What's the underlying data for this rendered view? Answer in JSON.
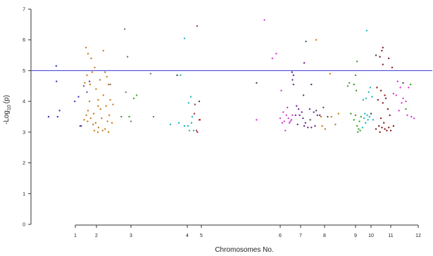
{
  "chart_data": {
    "type": "scatter",
    "xlabel": "Chromosomes No.",
    "ylabel_prefix": "-Log",
    "ylabel_sub": "10",
    "ylabel_suffix": "(p)",
    "ylim": [
      0,
      7
    ],
    "y_ticks": [
      "0",
      "1",
      "2",
      "3",
      "4",
      "5",
      "6",
      "7"
    ],
    "x_ticks": [
      {
        "label": "1",
        "x": 1
      },
      {
        "label": "2",
        "x": 2
      },
      {
        "label": "3",
        "x": 3
      },
      {
        "label": "4",
        "x": 4
      },
      {
        "label": "5",
        "x": 5
      },
      {
        "label": "6",
        "x": 6
      },
      {
        "label": "7",
        "x": 7
      },
      {
        "label": "8",
        "x": 8
      },
      {
        "label": "9",
        "x": 9
      },
      {
        "label": "10",
        "x": 10
      },
      {
        "label": "11",
        "x": 11
      },
      {
        "label": "12",
        "x": 12
      }
    ],
    "threshold": 5,
    "threshold_color": "#4b4bdc",
    "grid": false,
    "series": [
      {
        "color": "#3b3bb5",
        "points": [
          [
            0.05,
            3.5
          ],
          [
            0.33,
            4.65
          ],
          [
            0.37,
            3.5
          ],
          [
            0.32,
            5.15
          ],
          [
            0.44,
            3.7
          ],
          [
            0.98,
            4.0
          ],
          [
            1.15,
            4.15
          ],
          [
            1.23,
            3.2
          ]
        ]
      },
      {
        "color": "#c97a1e",
        "points": [
          [
            1.5,
            5.75
          ],
          [
            1.6,
            5.55
          ],
          [
            1.75,
            5.4
          ],
          [
            1.92,
            5.1
          ],
          [
            2.2,
            5.65
          ],
          [
            1.55,
            4.85
          ],
          [
            1.8,
            4.95
          ],
          [
            2.1,
            4.7
          ],
          [
            2.25,
            4.95
          ],
          [
            2.3,
            4.8
          ],
          [
            2.35,
            4.55
          ],
          [
            1.7,
            4.55
          ],
          [
            1.98,
            4.4
          ],
          [
            2.2,
            4.2
          ],
          [
            2.4,
            4.05
          ],
          [
            1.45,
            4.6
          ],
          [
            1.67,
            4.0
          ],
          [
            2.05,
            4.05
          ],
          [
            2.28,
            3.85
          ],
          [
            2.48,
            3.9
          ],
          [
            1.52,
            3.55
          ],
          [
            1.73,
            3.45
          ],
          [
            1.96,
            3.3
          ],
          [
            2.15,
            3.45
          ],
          [
            2.32,
            3.35
          ],
          [
            1.58,
            3.35
          ],
          [
            1.84,
            3.25
          ],
          [
            2.06,
            3.15
          ],
          [
            2.25,
            3.1
          ],
          [
            2.45,
            3.3
          ],
          [
            1.9,
            3.05
          ],
          [
            2.04,
            3.0
          ],
          [
            2.18,
            3.05
          ],
          [
            2.35,
            3.0
          ],
          [
            1.42,
            3.4
          ],
          [
            1.6,
            3.7
          ],
          [
            1.87,
            3.6
          ],
          [
            2.12,
            3.75
          ],
          [
            2.37,
            3.55
          ],
          [
            2.05,
            3.85
          ]
        ]
      },
      {
        "color": "#7b3fa0",
        "points": [
          [
            1.28,
            3.2
          ],
          [
            1.4,
            4.5
          ],
          [
            1.55,
            4.3
          ],
          [
            1.67,
            4.65
          ]
        ]
      },
      {
        "color": "#3fa02e",
        "points": [
          [
            2.72,
            3.5
          ],
          [
            2.95,
            3.5
          ],
          [
            3.05,
            4.1
          ],
          [
            3.1,
            4.2
          ],
          [
            2.9,
            5.45
          ]
        ]
      },
      {
        "color": "#777777",
        "points": [
          [
            2.4,
            4.55
          ],
          [
            2.82,
            6.35
          ],
          [
            3.35,
            4.9
          ],
          [
            3.4,
            3.5
          ],
          [
            3.0,
            3.35
          ],
          [
            2.85,
            4.3
          ]
        ]
      },
      {
        "color": "#20b8c0",
        "points": [
          [
            3.95,
            6.05
          ],
          [
            3.88,
            4.85
          ],
          [
            4.25,
            4.15
          ],
          [
            4.1,
            3.95
          ],
          [
            4.35,
            3.5
          ],
          [
            3.85,
            3.3
          ],
          [
            3.95,
            3.2
          ],
          [
            4.3,
            3.3
          ],
          [
            4.15,
            3.05
          ],
          [
            4.45,
            3.05
          ],
          [
            3.7,
            3.25
          ],
          [
            4.05,
            3.2
          ]
        ]
      },
      {
        "color": "#b03040",
        "points": [
          [
            4.7,
            6.45
          ],
          [
            4.55,
            3.9
          ],
          [
            4.5,
            3.6
          ],
          [
            4.65,
            3.05
          ],
          [
            4.85,
            3.4
          ],
          [
            4.9,
            3.4
          ],
          [
            4.72,
            3.0
          ]
        ]
      },
      {
        "color": "#444444",
        "points": [
          [
            5.7,
            4.6
          ],
          [
            3.82,
            4.85
          ],
          [
            4.85,
            4.0
          ]
        ]
      },
      {
        "color": "#d23cd2",
        "points": [
          [
            5.8,
            6.65
          ],
          [
            5.95,
            5.55
          ],
          [
            5.9,
            5.4
          ],
          [
            6.05,
            4.35
          ],
          [
            6.15,
            3.65
          ],
          [
            6.3,
            3.55
          ],
          [
            6.4,
            3.45
          ],
          [
            6.2,
            3.35
          ],
          [
            6.45,
            3.3
          ],
          [
            6.55,
            3.4
          ],
          [
            6.6,
            3.55
          ],
          [
            6.35,
            3.8
          ],
          [
            5.7,
            3.4
          ],
          [
            6.1,
            3.3
          ],
          [
            6.5,
            3.35
          ],
          [
            6.25,
            3.05
          ],
          [
            6.0,
            3.45
          ]
        ]
      },
      {
        "color": "#6b2a8a",
        "points": [
          [
            6.58,
            4.95
          ],
          [
            6.65,
            4.85
          ],
          [
            6.6,
            4.7
          ],
          [
            6.65,
            4.55
          ],
          [
            6.8,
            3.85
          ],
          [
            6.9,
            3.75
          ],
          [
            7.05,
            3.65
          ],
          [
            6.75,
            3.55
          ],
          [
            6.95,
            3.55
          ],
          [
            7.1,
            3.45
          ],
          [
            7.2,
            3.3
          ],
          [
            7.15,
            3.2
          ],
          [
            7.3,
            3.15
          ],
          [
            7.45,
            3.15
          ],
          [
            7.6,
            3.2
          ],
          [
            7.38,
            3.75
          ],
          [
            7.55,
            3.65
          ],
          [
            7.7,
            3.55
          ],
          [
            7.8,
            3.55
          ],
          [
            7.12,
            4.2
          ],
          [
            7.15,
            5.25
          ],
          [
            7.45,
            4.55
          ],
          [
            6.85,
            3.25
          ]
        ]
      },
      {
        "color": "#555555",
        "points": [
          [
            7.22,
            5.95
          ],
          [
            7.4,
            3.4
          ],
          [
            7.65,
            3.7
          ],
          [
            7.95,
            3.8
          ],
          [
            8.1,
            3.5
          ]
        ]
      },
      {
        "color": "#c97a1e",
        "points": [
          [
            7.65,
            6.0
          ],
          [
            8.18,
            4.9
          ],
          [
            7.9,
            3.2
          ],
          [
            8.02,
            3.1
          ],
          [
            8.22,
            3.5
          ],
          [
            8.45,
            3.6
          ],
          [
            8.35,
            3.25
          ],
          [
            7.85,
            3.5
          ]
        ]
      },
      {
        "color": "#3fa02e",
        "points": [
          [
            9.1,
            5.3
          ],
          [
            9.0,
            4.85
          ],
          [
            8.8,
            4.6
          ],
          [
            8.95,
            4.55
          ],
          [
            9.05,
            4.35
          ],
          [
            8.75,
            4.5
          ],
          [
            8.85,
            3.6
          ],
          [
            9.0,
            3.55
          ],
          [
            9.1,
            3.2
          ],
          [
            9.2,
            3.1
          ],
          [
            9.3,
            3.05
          ],
          [
            9.15,
            3.0
          ],
          [
            9.25,
            3.35
          ],
          [
            9.35,
            3.5
          ],
          [
            8.95,
            3.4
          ]
        ]
      },
      {
        "color": "#20b8c0",
        "points": [
          [
            9.72,
            6.3
          ],
          [
            9.68,
            4.1
          ],
          [
            9.85,
            4.3
          ],
          [
            9.95,
            4.45
          ],
          [
            10.05,
            4.15
          ],
          [
            9.55,
            3.45
          ],
          [
            9.65,
            3.3
          ],
          [
            9.8,
            3.4
          ],
          [
            9.9,
            3.5
          ],
          [
            9.45,
            3.15
          ],
          [
            9.75,
            3.55
          ],
          [
            10.1,
            3.4
          ],
          [
            9.6,
            3.6
          ],
          [
            9.5,
            4.05
          ]
        ]
      },
      {
        "color": "#8b1a1a",
        "points": [
          [
            10.6,
            5.75
          ],
          [
            10.55,
            5.65
          ],
          [
            10.45,
            5.45
          ],
          [
            10.9,
            5.4
          ],
          [
            10.6,
            5.2
          ],
          [
            11.05,
            5.1
          ],
          [
            10.3,
            4.45
          ],
          [
            10.5,
            4.35
          ],
          [
            10.7,
            4.2
          ],
          [
            10.35,
            4.05
          ],
          [
            10.6,
            3.95
          ],
          [
            10.75,
            4.1
          ],
          [
            10.85,
            3.75
          ],
          [
            10.95,
            3.55
          ],
          [
            10.5,
            3.45
          ],
          [
            10.65,
            3.3
          ],
          [
            10.4,
            3.2
          ],
          [
            10.55,
            3.15
          ],
          [
            10.7,
            3.1
          ],
          [
            10.8,
            3.05
          ],
          [
            10.9,
            3.15
          ],
          [
            11.0,
            3.05
          ],
          [
            10.45,
            3.0
          ],
          [
            10.25,
            3.1
          ],
          [
            11.1,
            3.2
          ]
        ]
      },
      {
        "color": "#d23cd2",
        "points": [
          [
            11.25,
            4.65
          ],
          [
            11.35,
            4.45
          ],
          [
            11.45,
            4.1
          ],
          [
            11.55,
            4.0
          ],
          [
            11.2,
            4.2
          ],
          [
            11.4,
            3.95
          ],
          [
            11.6,
            3.55
          ],
          [
            11.75,
            3.5
          ],
          [
            11.85,
            3.45
          ],
          [
            11.65,
            4.45
          ],
          [
            11.1,
            4.25
          ],
          [
            11.3,
            3.7
          ]
        ]
      },
      {
        "color": "#3fa02e",
        "points": [
          [
            11.72,
            4.55
          ],
          [
            11.55,
            3.75
          ]
        ]
      },
      {
        "color": "#444444",
        "points": [
          [
            10.25,
            5.5
          ],
          [
            10.0,
            3.6
          ],
          [
            11.45,
            4.6
          ]
        ]
      }
    ]
  }
}
